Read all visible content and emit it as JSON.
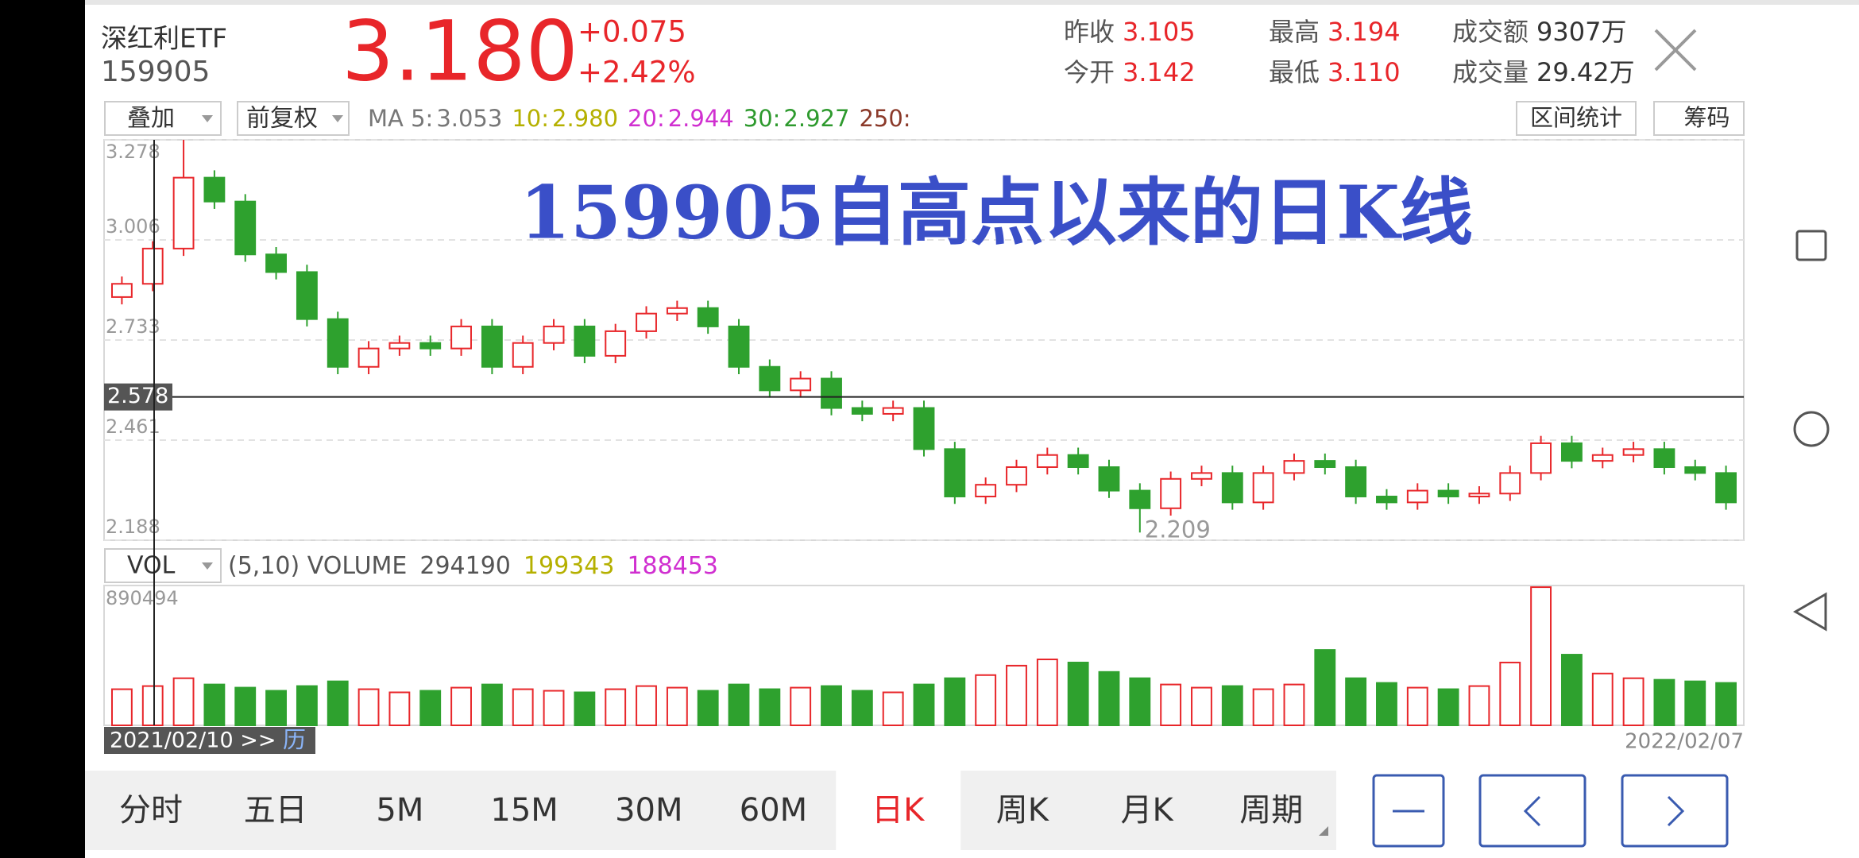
{
  "header": {
    "name": "深红利ETF",
    "code": "159905",
    "price": "3.180",
    "change": "+0.075",
    "change_pct": "+2.42%",
    "stats": [
      {
        "label": "昨收",
        "value": "3.105"
      },
      {
        "label": "今开",
        "value": "3.142"
      },
      {
        "label": "最高",
        "value": "3.194"
      },
      {
        "label": "最低",
        "value": "3.110"
      },
      {
        "label": "成交额",
        "value": "9307万"
      },
      {
        "label": "成交量",
        "value": "29.42万"
      }
    ]
  },
  "toolbar": {
    "overlay": "叠加",
    "adjust": "前复权",
    "ma": [
      {
        "label": "MA 5:",
        "value": "3.053",
        "color": "#777777"
      },
      {
        "label": "10:",
        "value": "2.980",
        "color": "#b5b000"
      },
      {
        "label": "20:",
        "value": "2.944",
        "color": "#d02fd0"
      },
      {
        "label": "30:",
        "value": "2.927",
        "color": "#2e9a2e"
      },
      {
        "label": "250:",
        "color": "#8b3a2a"
      }
    ],
    "buttons": [
      "区间统计",
      "筹码"
    ]
  },
  "chart_data": {
    "type": "candlestick",
    "title": "159905自高点以来的日K线",
    "ylim": [
      2.188,
      3.278
    ],
    "yticks": [
      2.188,
      {
        "value": 2.4605,
        "label": "2.461"
      },
      2.733,
      {
        "value": 3.0055,
        "label": "3.006"
      },
      3.278
    ],
    "up_color": "#e8262a",
    "down_color": "#2ea12e",
    "open": [
      2.85,
      2.886,
      2.982,
      3.175,
      3.11,
      2.966,
      2.918,
      2.79,
      2.66,
      2.71,
      2.725,
      2.71,
      2.77,
      2.66,
      2.725,
      2.77,
      2.69,
      2.757,
      2.805,
      2.82,
      2.77,
      2.66,
      2.596,
      2.628,
      2.548,
      2.532,
      2.548,
      2.436,
      2.307,
      2.339,
      2.387,
      2.42,
      2.387,
      2.323,
      2.275,
      2.355,
      2.371,
      2.291,
      2.371,
      2.404,
      2.387,
      2.307,
      2.291,
      2.323,
      2.307,
      2.315,
      2.371,
      2.452,
      2.404,
      2.42,
      2.436,
      2.387,
      2.371
    ],
    "high": [
      2.906,
      3.002,
      3.278,
      3.195,
      3.13,
      2.986,
      2.938,
      2.81,
      2.73,
      2.745,
      2.745,
      2.79,
      2.79,
      2.745,
      2.79,
      2.79,
      2.777,
      2.825,
      2.84,
      2.84,
      2.79,
      2.68,
      2.648,
      2.648,
      2.568,
      2.568,
      2.568,
      2.456,
      2.359,
      2.407,
      2.44,
      2.44,
      2.407,
      2.343,
      2.375,
      2.391,
      2.391,
      2.391,
      2.424,
      2.424,
      2.407,
      2.327,
      2.343,
      2.343,
      2.335,
      2.391,
      2.472,
      2.472,
      2.44,
      2.456,
      2.456,
      2.407,
      2.391
    ],
    "low": [
      2.83,
      2.866,
      2.962,
      3.09,
      2.946,
      2.898,
      2.77,
      2.64,
      2.64,
      2.69,
      2.69,
      2.69,
      2.64,
      2.64,
      2.705,
      2.67,
      2.67,
      2.737,
      2.785,
      2.75,
      2.64,
      2.576,
      2.576,
      2.528,
      2.512,
      2.512,
      2.416,
      2.287,
      2.287,
      2.319,
      2.367,
      2.367,
      2.303,
      2.209,
      2.255,
      2.335,
      2.271,
      2.271,
      2.351,
      2.367,
      2.287,
      2.271,
      2.271,
      2.287,
      2.287,
      2.295,
      2.351,
      2.384,
      2.384,
      2.4,
      2.367,
      2.351,
      2.271
    ],
    "close": [
      2.886,
      2.982,
      3.175,
      3.11,
      2.966,
      2.918,
      2.79,
      2.66,
      2.71,
      2.725,
      2.71,
      2.77,
      2.66,
      2.725,
      2.77,
      2.69,
      2.757,
      2.805,
      2.82,
      2.77,
      2.66,
      2.596,
      2.628,
      2.548,
      2.532,
      2.548,
      2.436,
      2.307,
      2.339,
      2.387,
      2.42,
      2.387,
      2.323,
      2.275,
      2.355,
      2.371,
      2.291,
      2.371,
      2.404,
      2.387,
      2.307,
      2.291,
      2.323,
      2.307,
      2.315,
      2.371,
      2.452,
      2.404,
      2.42,
      2.436,
      2.387,
      2.371,
      2.291
    ],
    "crosshair": 2.578,
    "low_annotation": 2.209,
    "low_index": 33,
    "start_label": "2021/02/10 >>",
    "calendar": "历",
    "end_label": "2022/02/07",
    "volume": {
      "indicator": "VOL",
      "params": "(5,10) VOLUME",
      "current": [
        294190,
        199343,
        188453
      ],
      "current_colors": [
        "#555555",
        "#b5b000",
        "#d02fd0"
      ],
      "ylim": [
        0,
        890494
      ],
      "yticks": [
        890494
      ],
      "values": [
        230000,
        250000,
        300000,
        260000,
        240000,
        220000,
        250000,
        280000,
        230000,
        210000,
        220000,
        240000,
        260000,
        230000,
        220000,
        210000,
        230000,
        250000,
        240000,
        220000,
        260000,
        230000,
        240000,
        250000,
        220000,
        210000,
        260000,
        300000,
        320000,
        380000,
        420000,
        400000,
        340000,
        300000,
        260000,
        240000,
        250000,
        230000,
        260000,
        480000,
        300000,
        270000,
        240000,
        230000,
        250000,
        400000,
        880000,
        450000,
        330000,
        300000,
        290000,
        280000,
        270000
      ]
    }
  },
  "tabs": [
    "分时",
    "五日",
    "5M",
    "15M",
    "30M",
    "60M",
    "日K",
    "周K",
    "月K",
    "周期"
  ],
  "active_tab": 6
}
